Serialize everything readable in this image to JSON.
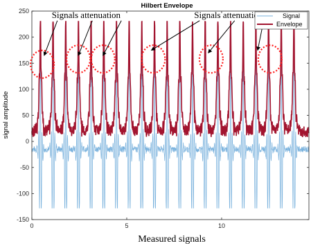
{
  "chart_data": {
    "type": "line",
    "title": "Hilbert Envelope",
    "xlabel": "Measured signals",
    "ylabel": "signal amplitude",
    "xlim": [
      0,
      14.6
    ],
    "ylim": [
      -150,
      250
    ],
    "xticks": [
      0,
      5,
      10
    ],
    "yticks": [
      -150,
      -100,
      -50,
      0,
      50,
      100,
      150,
      200,
      250
    ],
    "xtick_labels": [
      "0",
      "5",
      "10"
    ],
    "ytick_labels": [
      "-150",
      "-100",
      "-50",
      "0",
      "50",
      "100",
      "150",
      "200",
      "250"
    ],
    "grid": false,
    "legend_position": "top-right",
    "beats": {
      "count": 21,
      "first_x": 0.45,
      "spacing": 0.668,
      "signal_peak": 230,
      "signal_trough": -128,
      "signal_baseline": -15,
      "envelope_peak": 215,
      "envelope_baseline": 18
    },
    "series": [
      {
        "name": "Signal",
        "color": "#7ab2dd"
      },
      {
        "name": "Envelope",
        "color": "#a2142f"
      }
    ],
    "annotations": [
      {
        "text": "Signals attenuation",
        "anchor_x": 1.05,
        "anchor_y": 237,
        "targets": [
          [
            0.65,
            165
          ],
          [
            2.45,
            165
          ],
          [
            3.75,
            165
          ]
        ]
      },
      {
        "text": "Signals attenuation",
        "anchor_x": 8.55,
        "anchor_y": 237,
        "targets": [
          [
            6.3,
            175
          ],
          [
            9.3,
            170
          ],
          [
            11.9,
            175
          ]
        ]
      }
    ],
    "attenuation_markers": [
      {
        "x": 0.55,
        "y": 148
      },
      {
        "x": 2.45,
        "y": 158
      },
      {
        "x": 3.75,
        "y": 158
      },
      {
        "x": 6.4,
        "y": 158
      },
      {
        "x": 9.45,
        "y": 158
      },
      {
        "x": 12.55,
        "y": 158
      }
    ]
  }
}
